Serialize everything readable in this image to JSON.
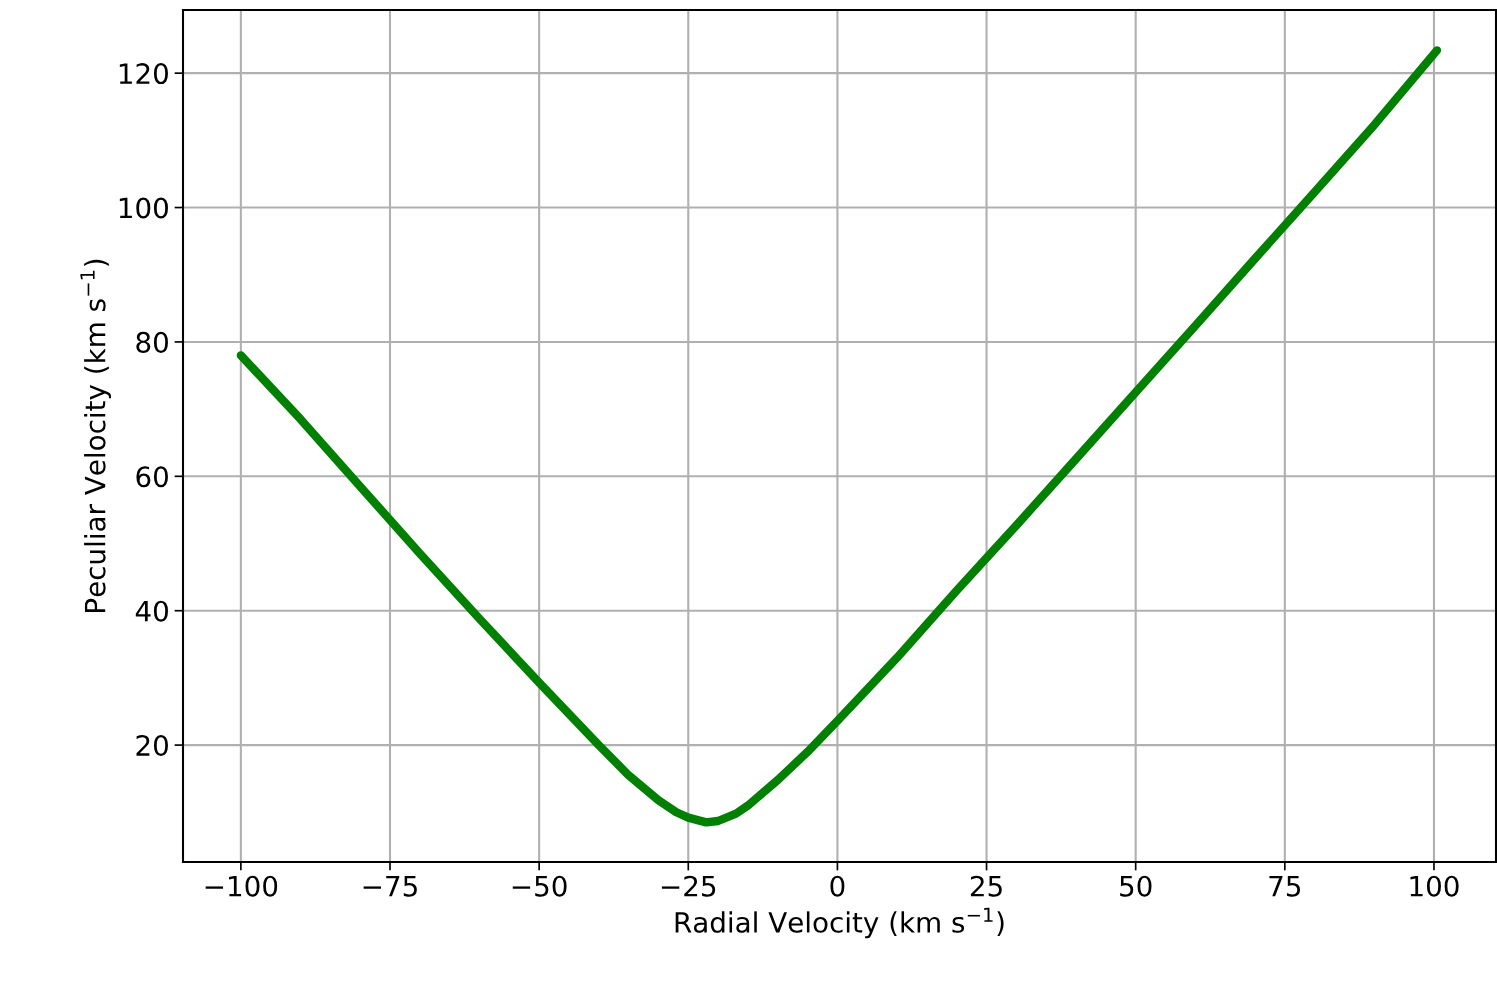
{
  "chart_data": {
    "type": "line",
    "xlabel": "Radial Velocity (km s$^{−1}$)",
    "ylabel": "Peculiar Velocity (km s$^{−1}$)",
    "x": [
      -100,
      -90,
      -80,
      -70,
      -60,
      -50,
      -40,
      -35,
      -30,
      -27,
      -25,
      -22,
      -20,
      -17,
      -15,
      -10,
      -5,
      0,
      10,
      20,
      30,
      40,
      50,
      60,
      70,
      80,
      90,
      100.5
    ],
    "series": [
      {
        "color": "#008000",
        "values": [
          78,
          68.5,
          58.5,
          48.5,
          38.8,
          29.3,
          20,
          15.5,
          11.8,
          10,
          9.2,
          8.5,
          8.7,
          9.8,
          11,
          14.8,
          19,
          23.6,
          33,
          43,
          52.7,
          62.6,
          72.5,
          82.4,
          92.4,
          102.3,
          112.3,
          123.4
        ]
      }
    ],
    "xlim": [
      -109.7,
      110.4
    ],
    "ylim": [
      2.6,
      129.4
    ],
    "xticks": [
      {
        "value": -100,
        "label": "−100"
      },
      {
        "value": -75,
        "label": "−75"
      },
      {
        "value": -50,
        "label": "−50"
      },
      {
        "value": -25,
        "label": "−25"
      },
      0,
      25,
      50,
      75,
      100
    ],
    "yticks": [
      20,
      40,
      60,
      80,
      100,
      120
    ],
    "grid": true,
    "marker": "none",
    "line_style": "solid"
  }
}
